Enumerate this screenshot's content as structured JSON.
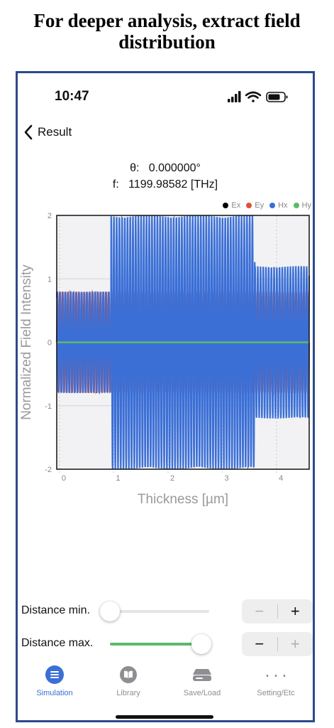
{
  "caption": "For deeper analysis, extract field distribution",
  "status": {
    "time": "10:47"
  },
  "nav": {
    "back_label": "Result"
  },
  "info": {
    "theta_label": "θ:",
    "theta_value": "0.000000°",
    "freq_label": "f:",
    "freq_value": "1199.98582 [THz]"
  },
  "chart_data": {
    "type": "line",
    "xlabel": "Thickness [µm]",
    "ylabel": "Normalized Field Intensity",
    "xlim": [
      -0.05,
      4.6
    ],
    "ylim": [
      -2,
      2
    ],
    "xticks": [
      0,
      1,
      2,
      3,
      4
    ],
    "yticks": [
      -2,
      -1,
      0,
      1,
      2
    ],
    "grid": true,
    "legend_position": "top-right",
    "series": [
      {
        "name": "Ex",
        "color": "#000000",
        "description": "near zero"
      },
      {
        "name": "Ey",
        "color": "#e0503c",
        "description": "oscillation amplitude ~0.8, approx 20 periods per um"
      },
      {
        "name": "Hx",
        "color": "#3b6fd6",
        "description": "amplitude ~0.8 for x<0.95 um, ~2.0 for x between 0.95 and 3.6 um, ~1.2 beyond"
      },
      {
        "name": "Hy",
        "color": "#5bbb6a",
        "description": "flat at 0"
      }
    ]
  },
  "sliders": {
    "min": {
      "label": "Distance min.",
      "value_fraction": 0.0
    },
    "max": {
      "label": "Distance max.",
      "value_fraction": 0.92
    }
  },
  "stepper": {
    "minus": "−",
    "plus": "+"
  },
  "tabs": [
    {
      "label": "Simulation",
      "icon": "list-icon",
      "active": true
    },
    {
      "label": "Library",
      "icon": "book-icon",
      "active": false
    },
    {
      "label": "Save/Load",
      "icon": "drive-icon",
      "active": false
    },
    {
      "label": "Setting/Etc",
      "icon": "braces-icon",
      "active": false
    }
  ]
}
